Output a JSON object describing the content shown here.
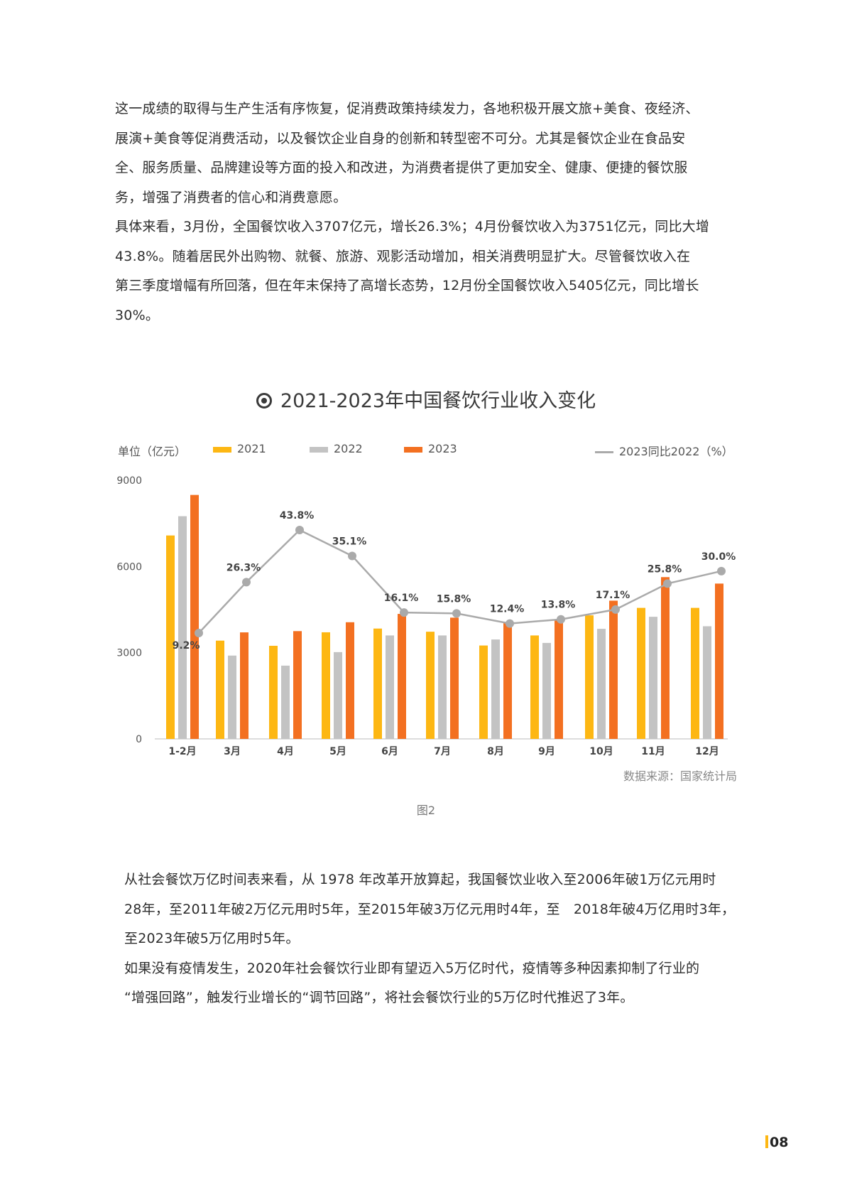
{
  "paragraphs_top": [
    "这一成绩的取得与生产生活有序恢复，促消费政策持续发力，各地积极开展文旅+美食、夜经济、",
    "展演+美食等促消费活动，以及餐饮企业自身的创新和转型密不可分。尤其是餐饮企业在食品安",
    "全、服务质量、品牌建设等方面的投入和改进，为消费者提供了更加安全、健康、便捷的餐饮服",
    "务，增强了消费者的信心和消费意愿。",
    "具体来看，3月份，全国餐饮收入3707亿元，增长26.3%；4月份餐饮收入为3751亿元，同比大增",
    "43.8%。随着居民外出购物、就餐、旅游、观影活动增加，相关消费明显扩大。尽管餐饮收入在",
    "第三季度增幅有所回落，但在年末保持了高增长态势，12月份全国餐饮收入5405亿元，同比增长",
    "30%。"
  ],
  "paragraphs_bottom": [
    "从社会餐饮万亿时间表来看，从 1978 年改革开放算起，我国餐饮业收入至2006年破1万亿元用时",
    "28年，至2011年破2万亿元用时5年，至2015年破3万亿元用时4年，至　2018年破4万亿用时3年，",
    "至2023年破5万亿用时5年。",
    "如果没有疫情发生，2020年社会餐饮行业即有望迈入5万亿时代，疫情等多种因素抑制了行业的",
    "“增强回路”，触发行业增长的“调节回路”，将社会餐饮行业的5万亿时代推迟了3年。"
  ],
  "chart": {
    "title": "2021-2023年中国餐饮行业收入变化",
    "unit_label": "单位（亿元）",
    "legend": {
      "s2021": "2021",
      "s2022": "2022",
      "s2023": "2023",
      "line": "2023同比2022（%）"
    },
    "source": "数据来源：国家统计局",
    "figure_caption": "图2"
  },
  "page_number": "08",
  "colors": {
    "s2021": "#FDB713",
    "s2022": "#C3C3C3",
    "s2023": "#F37021",
    "line": "#AAAAAA"
  },
  "chart_data": {
    "type": "bar",
    "title": "2021-2023年中国餐饮行业收入变化",
    "xlabel": "",
    "ylabel": "单位（亿元）",
    "ylim": [
      0,
      9000
    ],
    "yticks": [
      0,
      3000,
      6000,
      9000
    ],
    "categories": [
      "1-2月",
      "3月",
      "4月",
      "5月",
      "6月",
      "7月",
      "8月",
      "9月",
      "10月",
      "11月",
      "12月"
    ],
    "series": [
      {
        "name": "2021",
        "type": "bar",
        "values": [
          7080,
          3420,
          3240,
          3710,
          3840,
          3730,
          3250,
          3600,
          4300,
          4560,
          4560
        ]
      },
      {
        "name": "2022",
        "type": "bar",
        "values": [
          7750,
          2900,
          2550,
          3020,
          3600,
          3600,
          3460,
          3340,
          3830,
          4250,
          3920
        ]
      },
      {
        "name": "2023",
        "type": "bar",
        "values": [
          8490,
          3707,
          3751,
          4060,
          4350,
          4220,
          4040,
          4150,
          4810,
          5630,
          5405
        ]
      },
      {
        "name": "2023同比2022（%）",
        "type": "line",
        "values": [
          9.2,
          26.3,
          43.8,
          35.1,
          16.1,
          15.8,
          12.4,
          13.8,
          17.1,
          25.8,
          30.0
        ],
        "labels": [
          "9.2%",
          "26.3%",
          "43.8%",
          "35.1%",
          "16.1%",
          "15.8%",
          "12.4%",
          "13.8%",
          "17.1%",
          "25.8%",
          "30.0%"
        ]
      }
    ],
    "legend_position": "top",
    "grid": false,
    "source": "数据来源：国家统计局"
  }
}
